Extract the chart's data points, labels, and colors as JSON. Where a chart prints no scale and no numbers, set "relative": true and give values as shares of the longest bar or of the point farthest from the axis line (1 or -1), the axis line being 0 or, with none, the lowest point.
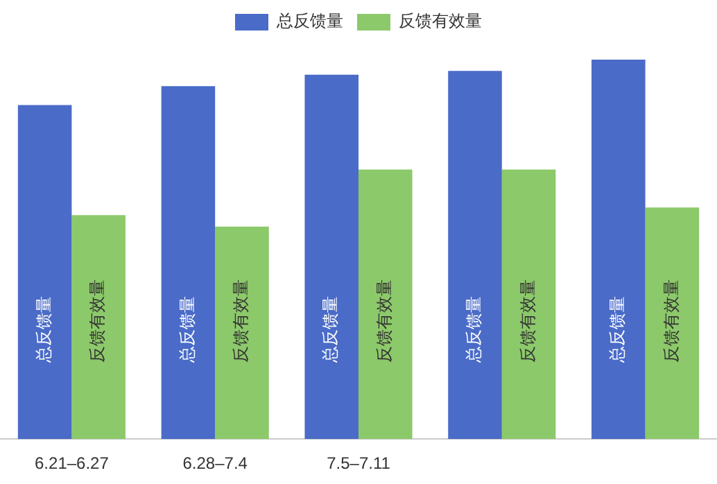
{
  "chart_data": {
    "type": "bar",
    "relative": true,
    "legend": "top",
    "categories": [
      "6.21–6.27",
      "6.28–7.4",
      "7.5–7.11",
      null,
      null
    ],
    "series": [
      {
        "name": "总反馈量",
        "color": "#4a6bc7",
        "values": [
          0.88,
          0.93,
          0.96,
          0.97,
          1
        ]
      },
      {
        "name": "反馈有效量",
        "color": "#8cc96a",
        "values": [
          0.59,
          0.56,
          0.71,
          0.71,
          0.61
        ]
      }
    ]
  }
}
